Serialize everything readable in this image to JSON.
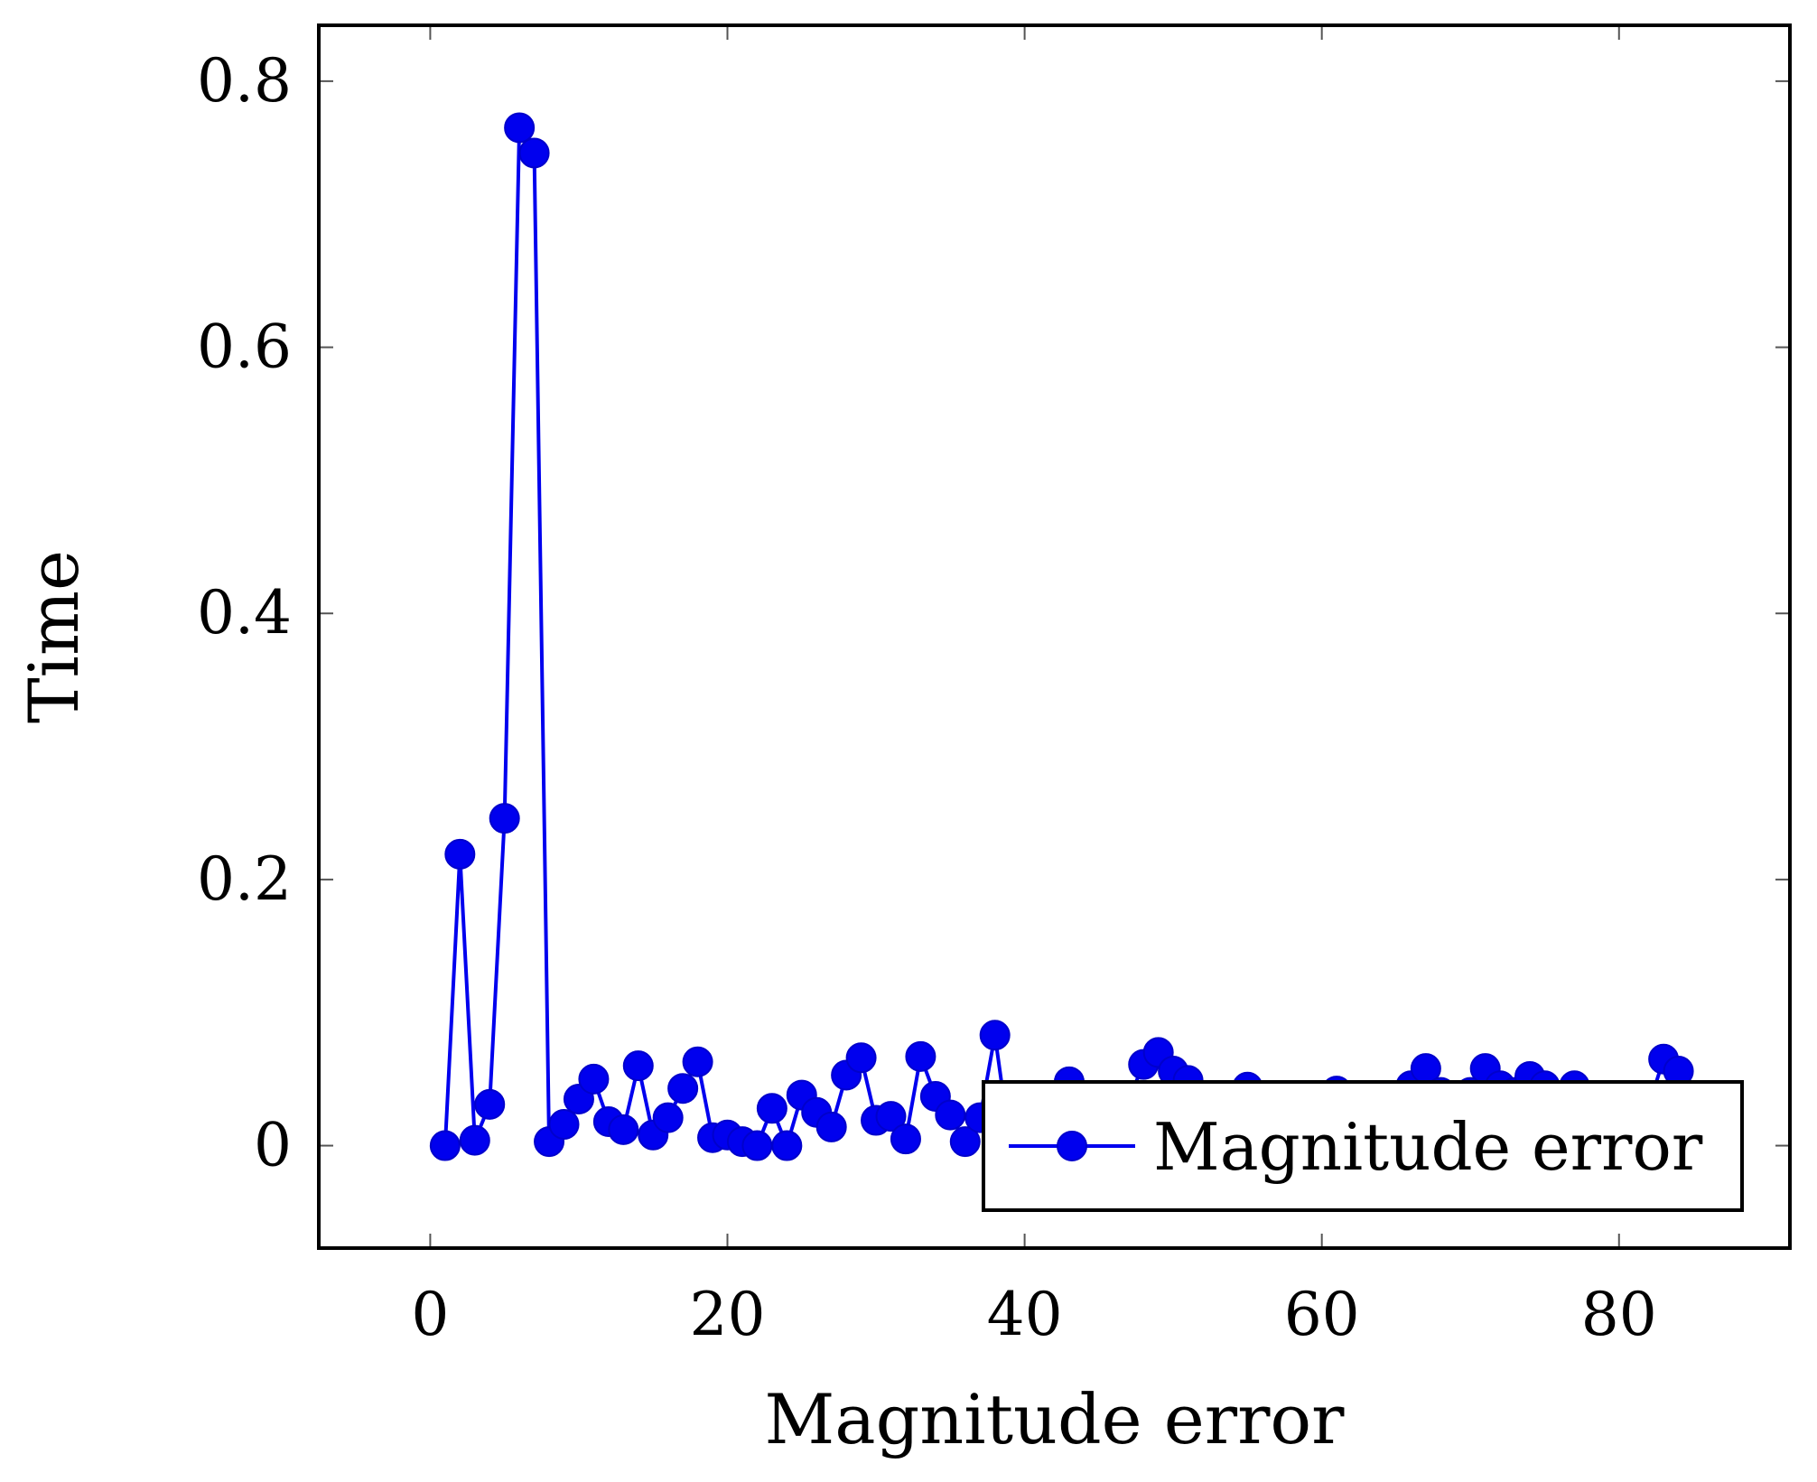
{
  "chart_data": {
    "type": "line",
    "xlabel": "Magnitude error",
    "ylabel": "Time",
    "xlim": [
      -7.5,
      91.5
    ],
    "ylim": [
      -0.077,
      0.842
    ],
    "x_ticks": [
      0,
      20,
      40,
      60,
      80
    ],
    "y_ticks": [
      0,
      0.2,
      0.4,
      0.6,
      0.8
    ],
    "x_tick_labels": [
      "0",
      "20",
      "40",
      "60",
      "80"
    ],
    "y_tick_labels": [
      "0",
      "0.2",
      "0.4",
      "0.6",
      "0.8"
    ],
    "legend_position": "bottom-right",
    "grid": false,
    "series": [
      {
        "name": "Magnitude error",
        "color": "#0000ee",
        "marker": "circle",
        "x": [
          1,
          2,
          3,
          4,
          5,
          6,
          7,
          8,
          9,
          10,
          11,
          12,
          13,
          14,
          15,
          16,
          17,
          18,
          19,
          20,
          21,
          22,
          23,
          24,
          25,
          26,
          27,
          28,
          29,
          30,
          31,
          32,
          33,
          34,
          35,
          36,
          37,
          38,
          39,
          40,
          41,
          42,
          43,
          44,
          45,
          46,
          47,
          48,
          49,
          50,
          51,
          52,
          53,
          54,
          55,
          56,
          57,
          58,
          59,
          60,
          61,
          62,
          63,
          64,
          65,
          66,
          67,
          68,
          69,
          70,
          71,
          72,
          73,
          74,
          75,
          76,
          77,
          78,
          79,
          80,
          81,
          82,
          83,
          84
        ],
        "y": [
          0.0,
          0.219,
          0.004,
          0.031,
          0.246,
          0.765,
          0.746,
          0.003,
          0.016,
          0.035,
          0.05,
          0.018,
          0.012,
          0.06,
          0.008,
          0.021,
          0.043,
          0.063,
          0.006,
          0.008,
          0.003,
          0.0,
          0.028,
          0.0,
          0.038,
          0.025,
          0.014,
          0.053,
          0.066,
          0.019,
          0.022,
          0.005,
          0.067,
          0.037,
          0.023,
          0.003,
          0.021,
          0.083,
          0.003,
          0.02,
          0.03,
          0.035,
          0.048,
          0.03,
          0.02,
          0.025,
          0.035,
          0.061,
          0.07,
          0.056,
          0.049,
          0.03,
          0.02,
          0.025,
          0.044,
          0.03,
          0.02,
          0.025,
          0.03,
          0.035,
          0.041,
          0.03,
          0.02,
          0.03,
          0.035,
          0.045,
          0.058,
          0.04,
          0.035,
          0.04,
          0.058,
          0.045,
          0.04,
          0.052,
          0.045,
          0.035,
          0.045,
          0.03,
          0.025,
          0.02,
          0.025,
          0.03,
          0.065,
          0.056
        ]
      }
    ]
  }
}
